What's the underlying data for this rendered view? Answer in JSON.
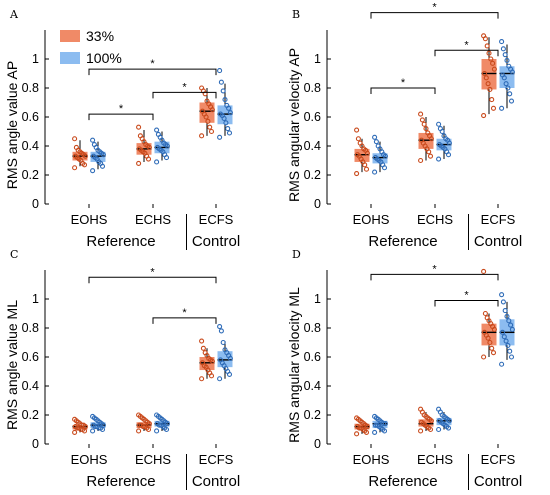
{
  "colors": {
    "c33_box": "#f08a67",
    "c33_dot": "#c94a1c",
    "c100_box": "#8cbcf0",
    "c100_dot": "#2f6cb8",
    "axis": "#000000"
  },
  "legend": {
    "items": [
      "33%",
      "100%"
    ]
  },
  "chart_data": [
    {
      "type": "box",
      "letter": "A",
      "ylabel": "RMS angle value AP",
      "ylim": [
        0,
        1.2
      ],
      "yticks": [
        "0",
        "0.2",
        "0.4",
        "0.6",
        "0.8",
        "1"
      ],
      "categories": [
        "EOHS",
        "ECHS",
        "ECFS"
      ],
      "groups": [
        "Reference",
        "Control"
      ],
      "show_legend": true,
      "series": [
        {
          "name": "33%",
          "boxes": [
            {
              "q1": 0.3,
              "median": 0.33,
              "q3": 0.36,
              "min": 0.26,
              "max": 0.44
            },
            {
              "q1": 0.34,
              "median": 0.38,
              "q3": 0.42,
              "min": 0.29,
              "max": 0.51
            },
            {
              "q1": 0.56,
              "median": 0.64,
              "q3": 0.7,
              "min": 0.47,
              "max": 0.8
            }
          ]
        },
        {
          "name": "100%",
          "boxes": [
            {
              "q1": 0.29,
              "median": 0.33,
              "q3": 0.36,
              "min": 0.24,
              "max": 0.43
            },
            {
              "q1": 0.35,
              "median": 0.39,
              "q3": 0.43,
              "min": 0.3,
              "max": 0.5
            },
            {
              "q1": 0.55,
              "median": 0.62,
              "q3": 0.68,
              "min": 0.47,
              "max": 0.83
            }
          ]
        }
      ],
      "points": [
        [
          0.25,
          0.27,
          0.28,
          0.3,
          0.31,
          0.32,
          0.33,
          0.33,
          0.34,
          0.35,
          0.36,
          0.37,
          0.39,
          0.45
        ],
        [
          0.23,
          0.26,
          0.28,
          0.29,
          0.31,
          0.32,
          0.33,
          0.34,
          0.35,
          0.36,
          0.37,
          0.39,
          0.41,
          0.44
        ],
        [
          0.28,
          0.31,
          0.33,
          0.35,
          0.36,
          0.37,
          0.38,
          0.39,
          0.4,
          0.41,
          0.43,
          0.45,
          0.47,
          0.53
        ],
        [
          0.29,
          0.32,
          0.34,
          0.36,
          0.37,
          0.38,
          0.39,
          0.4,
          0.41,
          0.42,
          0.44,
          0.46,
          0.48,
          0.51
        ],
        [
          0.47,
          0.5,
          0.53,
          0.57,
          0.6,
          0.62,
          0.64,
          0.65,
          0.67,
          0.69,
          0.71,
          0.76,
          0.78,
          0.8
        ],
        [
          0.46,
          0.49,
          0.52,
          0.56,
          0.59,
          0.61,
          0.62,
          0.63,
          0.66,
          0.68,
          0.72,
          0.78,
          0.84,
          0.92
        ]
      ],
      "significance": [
        {
          "from": 0,
          "to": 1,
          "y": 0.62,
          "label": "*"
        },
        {
          "from": 1,
          "to": 2,
          "y": 0.77,
          "label": "*"
        },
        {
          "from": 0,
          "to": 2,
          "y": 0.93,
          "label": "*"
        }
      ]
    },
    {
      "type": "box",
      "letter": "B",
      "ylabel": "RMS angular velocity AP",
      "ylim": [
        0,
        1.2
      ],
      "yticks": [
        "0",
        "0.2",
        "0.4",
        "0.6",
        "0.8",
        "1"
      ],
      "categories": [
        "EOHS",
        "ECHS",
        "ECFS"
      ],
      "groups": [
        "Reference",
        "Control"
      ],
      "show_legend": false,
      "series": [
        {
          "name": "33%",
          "boxes": [
            {
              "q1": 0.29,
              "median": 0.34,
              "q3": 0.38,
              "min": 0.22,
              "max": 0.45
            },
            {
              "q1": 0.38,
              "median": 0.44,
              "q3": 0.49,
              "min": 0.3,
              "max": 0.6
            },
            {
              "q1": 0.79,
              "median": 0.9,
              "q3": 1.0,
              "min": 0.62,
              "max": 1.15
            }
          ]
        },
        {
          "name": "100%",
          "boxes": [
            {
              "q1": 0.28,
              "median": 0.32,
              "q3": 0.35,
              "min": 0.22,
              "max": 0.43
            },
            {
              "q1": 0.37,
              "median": 0.41,
              "q3": 0.45,
              "min": 0.31,
              "max": 0.54
            },
            {
              "q1": 0.8,
              "median": 0.9,
              "q3": 0.95,
              "min": 0.66,
              "max": 1.1
            }
          ]
        }
      ],
      "points": [
        [
          0.21,
          0.24,
          0.27,
          0.29,
          0.31,
          0.33,
          0.34,
          0.35,
          0.37,
          0.38,
          0.4,
          0.42,
          0.45,
          0.51
        ],
        [
          0.22,
          0.25,
          0.27,
          0.29,
          0.3,
          0.31,
          0.32,
          0.33,
          0.34,
          0.36,
          0.38,
          0.4,
          0.43,
          0.46
        ],
        [
          0.3,
          0.33,
          0.36,
          0.38,
          0.4,
          0.42,
          0.44,
          0.45,
          0.47,
          0.49,
          0.52,
          0.55,
          0.58,
          0.62
        ],
        [
          0.31,
          0.34,
          0.36,
          0.38,
          0.39,
          0.4,
          0.41,
          0.42,
          0.44,
          0.45,
          0.47,
          0.5,
          0.52,
          0.55
        ],
        [
          0.61,
          0.66,
          0.72,
          0.79,
          0.83,
          0.87,
          0.9,
          0.93,
          0.97,
          1.0,
          1.04,
          1.09,
          1.14,
          1.16
        ],
        [
          0.66,
          0.71,
          0.76,
          0.8,
          0.83,
          0.87,
          0.89,
          0.91,
          0.93,
          0.95,
          0.99,
          1.03,
          1.07,
          1.12
        ]
      ],
      "significance": [
        {
          "from": 0,
          "to": 1,
          "y": 0.8,
          "label": "*"
        },
        {
          "from": 1,
          "to": 2,
          "y": 1.06,
          "label": "*"
        },
        {
          "from": 0,
          "to": 2,
          "y": 1.32,
          "label": "*"
        }
      ]
    },
    {
      "type": "box",
      "letter": "C",
      "ylabel": "RMS angle value ML",
      "ylim": [
        0,
        1.2
      ],
      "yticks": [
        "0",
        "0.2",
        "0.4",
        "0.6",
        "0.8",
        "1"
      ],
      "categories": [
        "EOHS",
        "ECHS",
        "ECFS"
      ],
      "groups": [
        "Reference",
        "Control"
      ],
      "show_legend": false,
      "series": [
        {
          "name": "33%",
          "boxes": [
            {
              "q1": 0.1,
              "median": 0.12,
              "q3": 0.13,
              "min": 0.08,
              "max": 0.16
            },
            {
              "q1": 0.11,
              "median": 0.13,
              "q3": 0.15,
              "min": 0.09,
              "max": 0.19
            },
            {
              "q1": 0.51,
              "median": 0.56,
              "q3": 0.6,
              "min": 0.45,
              "max": 0.66
            }
          ]
        },
        {
          "name": "100%",
          "boxes": [
            {
              "q1": 0.11,
              "median": 0.13,
              "q3": 0.15,
              "min": 0.09,
              "max": 0.18
            },
            {
              "q1": 0.12,
              "median": 0.14,
              "q3": 0.16,
              "min": 0.09,
              "max": 0.19
            },
            {
              "q1": 0.53,
              "median": 0.58,
              "q3": 0.64,
              "min": 0.45,
              "max": 0.71
            }
          ]
        }
      ],
      "points": [
        [
          0.08,
          0.09,
          0.1,
          0.1,
          0.11,
          0.11,
          0.12,
          0.12,
          0.13,
          0.13,
          0.14,
          0.15,
          0.16,
          0.17
        ],
        [
          0.09,
          0.1,
          0.11,
          0.11,
          0.12,
          0.12,
          0.13,
          0.13,
          0.14,
          0.15,
          0.16,
          0.17,
          0.18,
          0.19
        ],
        [
          0.09,
          0.1,
          0.11,
          0.12,
          0.12,
          0.13,
          0.13,
          0.14,
          0.15,
          0.16,
          0.17,
          0.18,
          0.19,
          0.2
        ],
        [
          0.09,
          0.1,
          0.11,
          0.12,
          0.13,
          0.13,
          0.14,
          0.14,
          0.15,
          0.16,
          0.17,
          0.18,
          0.19,
          0.2
        ],
        [
          0.45,
          0.47,
          0.49,
          0.51,
          0.53,
          0.54,
          0.56,
          0.57,
          0.58,
          0.59,
          0.61,
          0.63,
          0.66,
          0.71
        ],
        [
          0.45,
          0.48,
          0.5,
          0.52,
          0.54,
          0.56,
          0.58,
          0.59,
          0.61,
          0.63,
          0.65,
          0.7,
          0.78,
          0.81
        ]
      ],
      "significance": [
        {
          "from": 1,
          "to": 2,
          "y": 0.87,
          "label": "*"
        },
        {
          "from": 0,
          "to": 2,
          "y": 1.15,
          "label": "*"
        }
      ]
    },
    {
      "type": "box",
      "letter": "D",
      "ylabel": "RMS angular velocity ML",
      "ylim": [
        0,
        1.2
      ],
      "yticks": [
        "0",
        "0.2",
        "0.4",
        "0.6",
        "0.8",
        "1"
      ],
      "categories": [
        "EOHS",
        "ECHS",
        "ECFS"
      ],
      "groups": [
        "Reference",
        "Control"
      ],
      "show_legend": false,
      "series": [
        {
          "name": "33%",
          "boxes": [
            {
              "q1": 0.1,
              "median": 0.12,
              "q3": 0.14,
              "min": 0.07,
              "max": 0.17
            },
            {
              "q1": 0.12,
              "median": 0.14,
              "q3": 0.17,
              "min": 0.09,
              "max": 0.22
            },
            {
              "q1": 0.68,
              "median": 0.77,
              "q3": 0.83,
              "min": 0.6,
              "max": 0.9
            }
          ]
        },
        {
          "name": "100%",
          "boxes": [
            {
              "q1": 0.11,
              "median": 0.14,
              "q3": 0.16,
              "min": 0.08,
              "max": 0.18
            },
            {
              "q1": 0.13,
              "median": 0.16,
              "q3": 0.18,
              "min": 0.1,
              "max": 0.22
            },
            {
              "q1": 0.68,
              "median": 0.77,
              "q3": 0.86,
              "min": 0.58,
              "max": 0.98
            }
          ]
        }
      ],
      "points": [
        [
          0.07,
          0.08,
          0.09,
          0.1,
          0.11,
          0.11,
          0.12,
          0.12,
          0.13,
          0.14,
          0.15,
          0.16,
          0.17,
          0.18
        ],
        [
          0.08,
          0.09,
          0.1,
          0.11,
          0.12,
          0.13,
          0.13,
          0.14,
          0.14,
          0.15,
          0.16,
          0.17,
          0.18,
          0.19
        ],
        [
          0.09,
          0.1,
          0.11,
          0.12,
          0.13,
          0.14,
          0.15,
          0.16,
          0.17,
          0.18,
          0.19,
          0.2,
          0.22,
          0.24
        ],
        [
          0.1,
          0.11,
          0.12,
          0.13,
          0.14,
          0.15,
          0.16,
          0.16,
          0.17,
          0.18,
          0.19,
          0.2,
          0.22,
          0.24
        ],
        [
          0.6,
          0.63,
          0.66,
          0.7,
          0.73,
          0.75,
          0.77,
          0.79,
          0.81,
          0.83,
          0.85,
          0.87,
          0.9,
          1.19
        ],
        [
          0.55,
          0.6,
          0.64,
          0.68,
          0.71,
          0.74,
          0.77,
          0.79,
          0.82,
          0.85,
          0.88,
          0.92,
          0.98,
          1.03
        ]
      ],
      "significance": [
        {
          "from": 1,
          "to": 2,
          "y": 0.99,
          "label": "*"
        },
        {
          "from": 0,
          "to": 2,
          "y": 1.17,
          "label": "*"
        }
      ]
    }
  ]
}
